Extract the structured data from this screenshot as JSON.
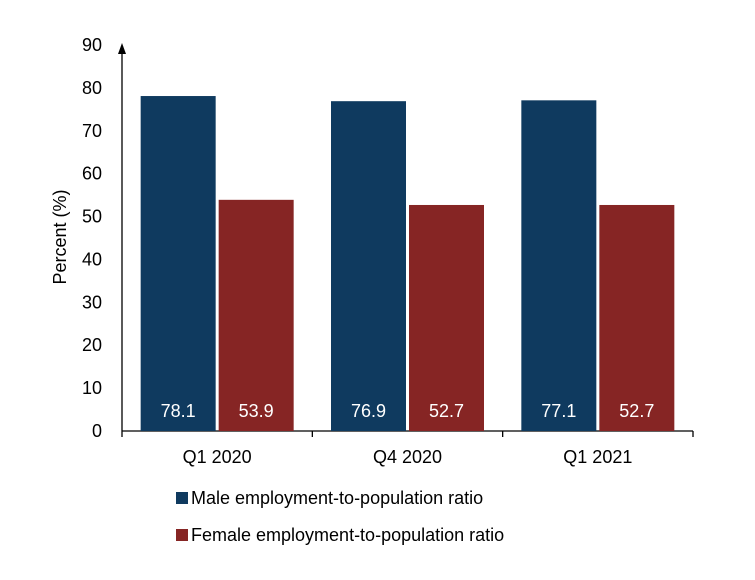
{
  "chart_data": {
    "type": "bar",
    "categories": [
      "Q1 2020",
      "Q4 2020",
      "Q1 2021"
    ],
    "series": [
      {
        "name": "Male employment-to-population ratio",
        "values": [
          78.1,
          76.9,
          77.1
        ],
        "color": "#0f3a5f"
      },
      {
        "name": "Female employment-to-population ratio",
        "values": [
          53.9,
          52.7,
          52.7
        ],
        "color": "#862524"
      }
    ],
    "ylabel": "Percent (%)",
    "ylim": [
      0,
      90
    ],
    "yticks": [
      "0",
      "10",
      "20",
      "30",
      "40",
      "50",
      "60",
      "70",
      "80",
      "90"
    ],
    "data_labels": [
      [
        "78.1",
        "76.9",
        "77.1"
      ],
      [
        "53.9",
        "52.7",
        "52.7"
      ]
    ],
    "grid": false,
    "legend_position": "bottom"
  }
}
